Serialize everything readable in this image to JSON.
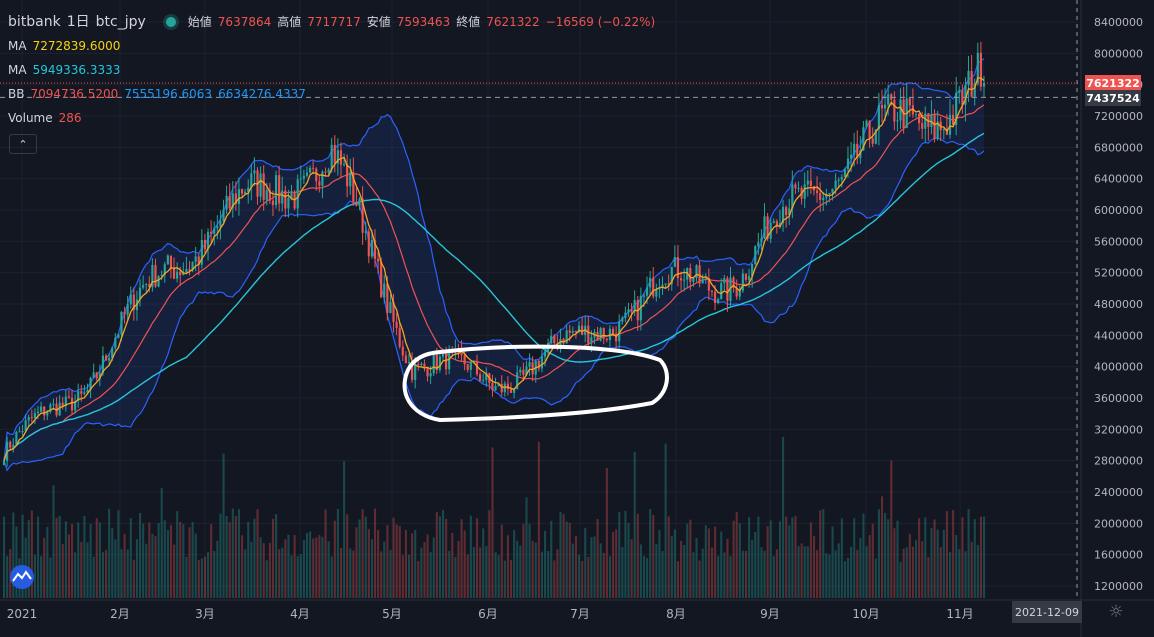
{
  "legend": {
    "exchange": "bitbank",
    "interval": "1日",
    "pair": "btc_jpy",
    "ohlc": {
      "open_label": "始値",
      "open": "7637864",
      "high_label": "高値",
      "high": "7717717",
      "low_label": "安値",
      "low": "7593463",
      "close_label": "終値",
      "close": "7621322",
      "change": "−16569 (−0.22%)"
    },
    "ma1": {
      "label": "MA",
      "value": "7272839.6000",
      "color": "#f5d311"
    },
    "ma2": {
      "label": "MA",
      "value": "5949336.3333",
      "color": "#26c6da"
    },
    "bb": {
      "label": "BB",
      "mid": "7094736.5200",
      "upper": "7555196.6063",
      "lower": "6634276.4337",
      "mid_color": "#ef5350",
      "band_color": "#2962ff"
    },
    "volume": {
      "label": "Volume",
      "value": "286"
    },
    "collapse_icon": "chevron-up-icon"
  },
  "price_tags": {
    "last": "7621322",
    "reference": "7437524"
  },
  "footer": {
    "date": "2021-12-09",
    "settings_icon": "gear-icon",
    "logo": "tradingview-logo"
  },
  "colors": {
    "up": "#26a69a",
    "down": "#ef5350",
    "background": "#131722",
    "grid": "#1e222d",
    "ma_fast": "#f5a623",
    "ma_slow": "#26c6da",
    "bb_band": "#2962ff",
    "bb_mid": "#ef5350"
  },
  "chart_data": {
    "type": "candlestick",
    "x_labels": [
      "2021",
      "2月",
      "3月",
      "4月",
      "5月",
      "6月",
      "7月",
      "8月",
      "9月",
      "10月",
      "11月"
    ],
    "y_ticks": [
      8400000,
      8000000,
      7600000,
      7200000,
      6800000,
      6400000,
      6000000,
      5600000,
      5200000,
      4800000,
      4400000,
      4000000,
      3600000,
      3200000,
      2800000,
      2400000,
      2000000,
      1600000,
      1200000
    ],
    "ylim": [
      1000000,
      8550000
    ],
    "monthly_anchor_close": [
      2900000,
      3800000,
      5300000,
      6100000,
      6700000,
      4100000,
      3800000,
      4300000,
      5000000,
      5200000,
      6400000,
      7100000,
      7621322
    ],
    "annotation": "white hand-drawn ellipse around the Jun–Jul consolidation range"
  }
}
